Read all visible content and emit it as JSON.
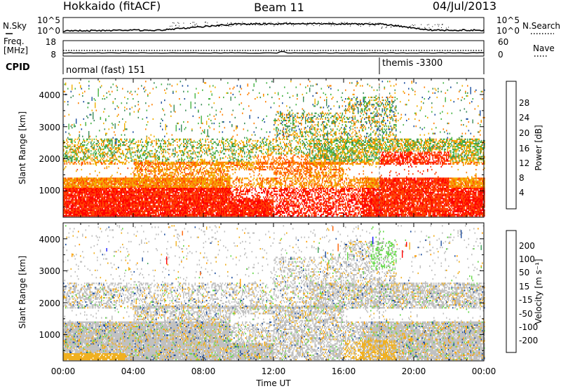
{
  "header": {
    "station": "Hokkaido (fitACF)",
    "beam": "Beam 11",
    "date": "04/Jul/2013"
  },
  "noise_panel": {
    "left_label": "N.Sky",
    "right_label": "N.Search",
    "left_ticks": [
      "10^5",
      "10^0"
    ],
    "right_ticks": [
      "10^5",
      "10^0"
    ]
  },
  "freq_panel": {
    "left_label_1": "Freq.",
    "left_label_2": "[MHz]",
    "right_label": "Nave",
    "left_ticks": [
      "18",
      "8"
    ],
    "right_ticks": [
      "60",
      "0"
    ]
  },
  "cpid_panel": {
    "label": "CPID",
    "mode_1": "normal (fast) 151",
    "mode_2": "themis -3300"
  },
  "colors": {
    "power": [
      "#0000ff",
      "#1d4f9e",
      "#3c8c5a",
      "#46b446",
      "#f0b000",
      "#ff8000",
      "#ff4000",
      "#ff0000"
    ],
    "velocity": [
      "#ff0000",
      "#ff6000",
      "#ff9c00",
      "#f0b020",
      "#c0c0c0",
      "#66d94a",
      "#3ca05a",
      "#2050a0",
      "#1a1aff"
    ]
  },
  "chart_data": [
    {
      "type": "heatmap",
      "title": "",
      "ylabel": "Slant Range [km]",
      "xlabel": "",
      "ylim": [
        180,
        4500
      ],
      "xlim": [
        "00:00",
        "24:00"
      ],
      "y_ticks": [
        "1000",
        "2000",
        "3000",
        "4000"
      ],
      "colorbar": {
        "label": "Power [dB]",
        "ticks": [
          "4",
          "8",
          "12",
          "16",
          "20",
          "24",
          "28"
        ]
      }
    },
    {
      "type": "heatmap",
      "title": "",
      "ylabel": "Slant Range [km]",
      "xlabel": "Time UT",
      "ylim": [
        180,
        4500
      ],
      "xlim": [
        "00:00",
        "24:00"
      ],
      "x_ticks": [
        "00:00",
        "04:00",
        "08:00",
        "12:00",
        "16:00",
        "20:00",
        "00:00"
      ],
      "y_ticks": [
        "1000",
        "2000",
        "3000",
        "4000"
      ],
      "colorbar": {
        "label": "Velocity [m s⁻¹]",
        "ticks": [
          "200",
          "100",
          "50",
          "15",
          "-15",
          "-50",
          "-100",
          "-200"
        ]
      }
    }
  ]
}
